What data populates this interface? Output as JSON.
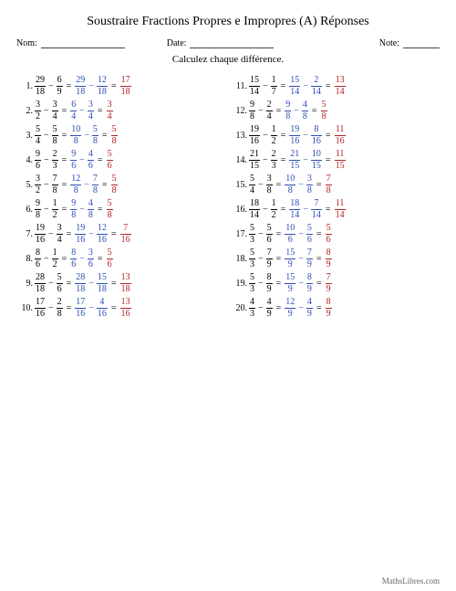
{
  "title": "Soustraire Fractions Propres e Impropres (A) Réponses",
  "labels": {
    "nom": "Nom:",
    "date": "Date:",
    "note": "Note:"
  },
  "subtitle": "Calculez chaque différence.",
  "footer": "MathsLibres.com",
  "colors": {
    "step": "#2b4db2",
    "answer": "#b22222"
  },
  "left": [
    {
      "n": 1,
      "a": [
        29,
        18
      ],
      "b": [
        6,
        9
      ],
      "s1": [
        29,
        18
      ],
      "s2": [
        12,
        18
      ],
      "r": [
        17,
        18
      ]
    },
    {
      "n": 2,
      "a": [
        3,
        2
      ],
      "b": [
        3,
        4
      ],
      "s1": [
        6,
        4
      ],
      "s2": [
        3,
        4
      ],
      "r": [
        3,
        4
      ]
    },
    {
      "n": 3,
      "a": [
        5,
        4
      ],
      "b": [
        5,
        8
      ],
      "s1": [
        10,
        8
      ],
      "s2": [
        5,
        8
      ],
      "r": [
        5,
        8
      ]
    },
    {
      "n": 4,
      "a": [
        9,
        6
      ],
      "b": [
        2,
        3
      ],
      "s1": [
        9,
        6
      ],
      "s2": [
        4,
        6
      ],
      "r": [
        5,
        6
      ]
    },
    {
      "n": 5,
      "a": [
        3,
        2
      ],
      "b": [
        7,
        8
      ],
      "s1": [
        12,
        8
      ],
      "s2": [
        7,
        8
      ],
      "r": [
        5,
        8
      ]
    },
    {
      "n": 6,
      "a": [
        9,
        8
      ],
      "b": [
        1,
        2
      ],
      "s1": [
        9,
        8
      ],
      "s2": [
        4,
        8
      ],
      "r": [
        5,
        8
      ]
    },
    {
      "n": 7,
      "a": [
        19,
        16
      ],
      "b": [
        3,
        4
      ],
      "s1": [
        19,
        16
      ],
      "s2": [
        12,
        16
      ],
      "r": [
        7,
        16
      ]
    },
    {
      "n": 8,
      "a": [
        8,
        6
      ],
      "b": [
        1,
        2
      ],
      "s1": [
        8,
        6
      ],
      "s2": [
        3,
        6
      ],
      "r": [
        5,
        6
      ]
    },
    {
      "n": 9,
      "a": [
        28,
        18
      ],
      "b": [
        5,
        6
      ],
      "s1": [
        28,
        18
      ],
      "s2": [
        15,
        18
      ],
      "r": [
        13,
        18
      ]
    },
    {
      "n": 10,
      "a": [
        17,
        16
      ],
      "b": [
        2,
        8
      ],
      "s1": [
        17,
        16
      ],
      "s2": [
        4,
        16
      ],
      "r": [
        13,
        16
      ]
    }
  ],
  "right": [
    {
      "n": 11,
      "a": [
        15,
        14
      ],
      "b": [
        1,
        7
      ],
      "s1": [
        15,
        14
      ],
      "s2": [
        2,
        14
      ],
      "r": [
        13,
        14
      ]
    },
    {
      "n": 12,
      "a": [
        9,
        8
      ],
      "b": [
        2,
        4
      ],
      "s1": [
        9,
        8
      ],
      "s2": [
        4,
        8
      ],
      "r": [
        5,
        8
      ]
    },
    {
      "n": 13,
      "a": [
        19,
        16
      ],
      "b": [
        1,
        2
      ],
      "s1": [
        19,
        16
      ],
      "s2": [
        8,
        16
      ],
      "r": [
        11,
        16
      ]
    },
    {
      "n": 14,
      "a": [
        21,
        15
      ],
      "b": [
        2,
        3
      ],
      "s1": [
        21,
        15
      ],
      "s2": [
        10,
        15
      ],
      "r": [
        11,
        15
      ]
    },
    {
      "n": 15,
      "a": [
        5,
        4
      ],
      "b": [
        3,
        8
      ],
      "s1": [
        10,
        8
      ],
      "s2": [
        3,
        8
      ],
      "r": [
        7,
        8
      ]
    },
    {
      "n": 16,
      "a": [
        18,
        14
      ],
      "b": [
        1,
        2
      ],
      "s1": [
        18,
        14
      ],
      "s2": [
        7,
        14
      ],
      "r": [
        11,
        14
      ]
    },
    {
      "n": 17,
      "a": [
        5,
        3
      ],
      "b": [
        5,
        6
      ],
      "s1": [
        10,
        6
      ],
      "s2": [
        5,
        6
      ],
      "r": [
        5,
        6
      ]
    },
    {
      "n": 18,
      "a": [
        5,
        3
      ],
      "b": [
        7,
        9
      ],
      "s1": [
        15,
        9
      ],
      "s2": [
        7,
        9
      ],
      "r": [
        8,
        9
      ]
    },
    {
      "n": 19,
      "a": [
        5,
        3
      ],
      "b": [
        8,
        9
      ],
      "s1": [
        15,
        9
      ],
      "s2": [
        8,
        9
      ],
      "r": [
        7,
        9
      ]
    },
    {
      "n": 20,
      "a": [
        4,
        3
      ],
      "b": [
        4,
        9
      ],
      "s1": [
        12,
        9
      ],
      "s2": [
        4,
        9
      ],
      "r": [
        8,
        9
      ]
    }
  ]
}
